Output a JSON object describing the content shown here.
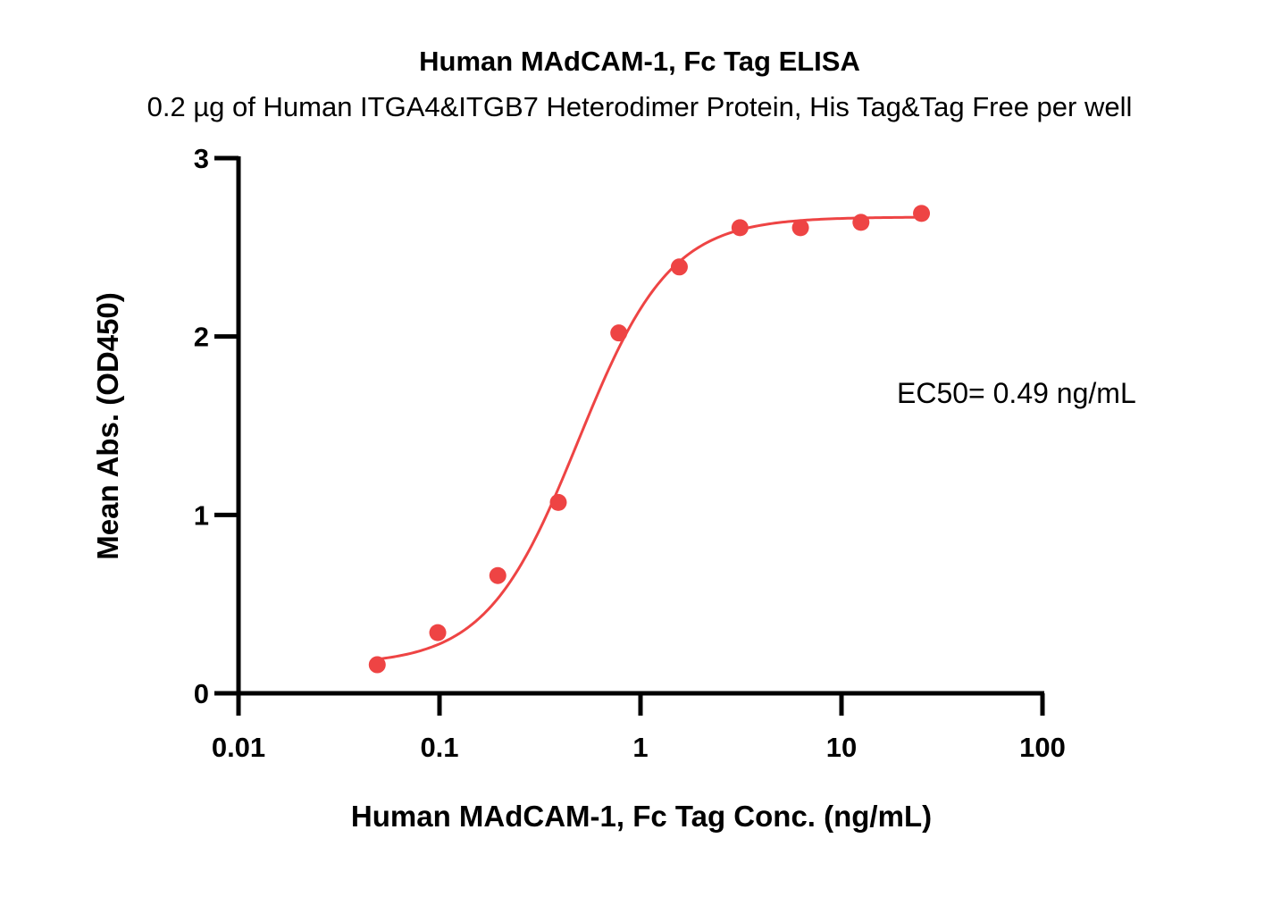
{
  "chart_data": {
    "type": "scatter",
    "title": "Human MAdCAM-1, Fc Tag ELISA",
    "subtitle": "0.2 µg of Human ITGA4&ITGB7 Heterodimer Protein, His Tag&Tag Free per well",
    "xlabel": "Human MAdCAM-1, Fc Tag Conc. (ng/mL)",
    "ylabel": "Mean Abs. (OD450)",
    "xscale": "log",
    "xlim": [
      0.01,
      100
    ],
    "ylim": [
      0,
      3
    ],
    "xticks": [
      0.01,
      0.1,
      1,
      10,
      100
    ],
    "xtick_labels": [
      "0.01",
      "0.1",
      "1",
      "10",
      "100"
    ],
    "yticks": [
      0,
      1,
      2,
      3
    ],
    "ytick_labels": [
      "0",
      "1",
      "2",
      "3"
    ],
    "grid": false,
    "color": "#ee4444",
    "series": [
      {
        "x": [
          0.049,
          0.098,
          0.195,
          0.39,
          0.78,
          1.56,
          3.125,
          6.25,
          12.5,
          25
        ],
        "y": [
          0.16,
          0.34,
          0.66,
          1.07,
          2.02,
          2.39,
          2.61,
          2.61,
          2.64,
          2.69
        ]
      }
    ],
    "fit": {
      "type": "4PL",
      "bottom": 0.16,
      "top": 2.67,
      "ec50": 0.49,
      "hill": 1.9
    },
    "annotations": [
      "EC50= 0.49 ng/mL"
    ]
  }
}
